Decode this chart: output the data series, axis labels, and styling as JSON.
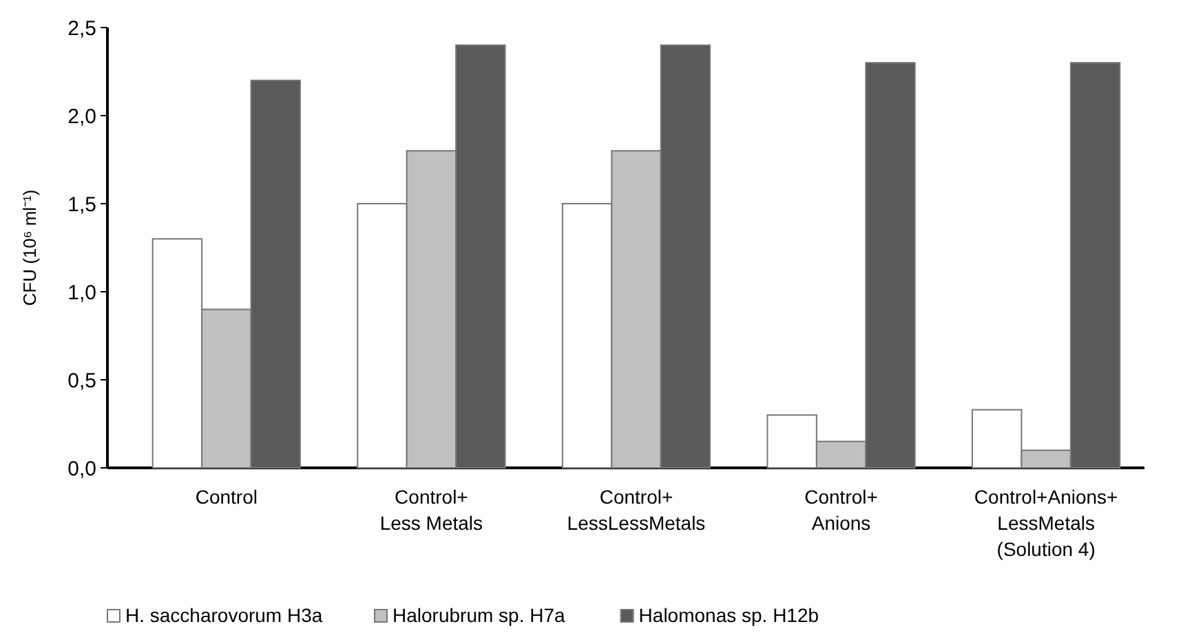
{
  "chart_data": {
    "type": "bar",
    "ylabel": "CFU (10⁶ ml⁻¹)",
    "categories": [
      "Control",
      "Control+\nLess Metals",
      "Control+\nLessLessMetals",
      "Control+\nAnions",
      "Control+Anions+\nLessMetals\n(Solution 4)"
    ],
    "series": [
      {
        "name": "H. saccharovorum H3a",
        "color": "#ffffff",
        "values": [
          1.3,
          1.5,
          1.5,
          0.3,
          0.33
        ]
      },
      {
        "name": "Halorubrum sp. H7a",
        "color": "#c0c0c0",
        "values": [
          0.9,
          1.8,
          1.8,
          0.15,
          0.1
        ]
      },
      {
        "name": "Halomonas sp. H12b",
        "color": "#5a5a5a",
        "values": [
          2.2,
          2.4,
          2.4,
          2.3,
          2.3
        ]
      }
    ],
    "ylim": [
      0,
      2.5
    ],
    "yticks": [
      {
        "value": 0,
        "label": "0,0"
      },
      {
        "value": 0.5,
        "label": "0,5"
      },
      {
        "value": 1,
        "label": "1,0"
      },
      {
        "value": 1.5,
        "label": "1,5"
      },
      {
        "value": 2,
        "label": "2,0"
      },
      {
        "value": 2.5,
        "label": "2,5"
      }
    ],
    "grid": false,
    "legend": "bottom"
  }
}
